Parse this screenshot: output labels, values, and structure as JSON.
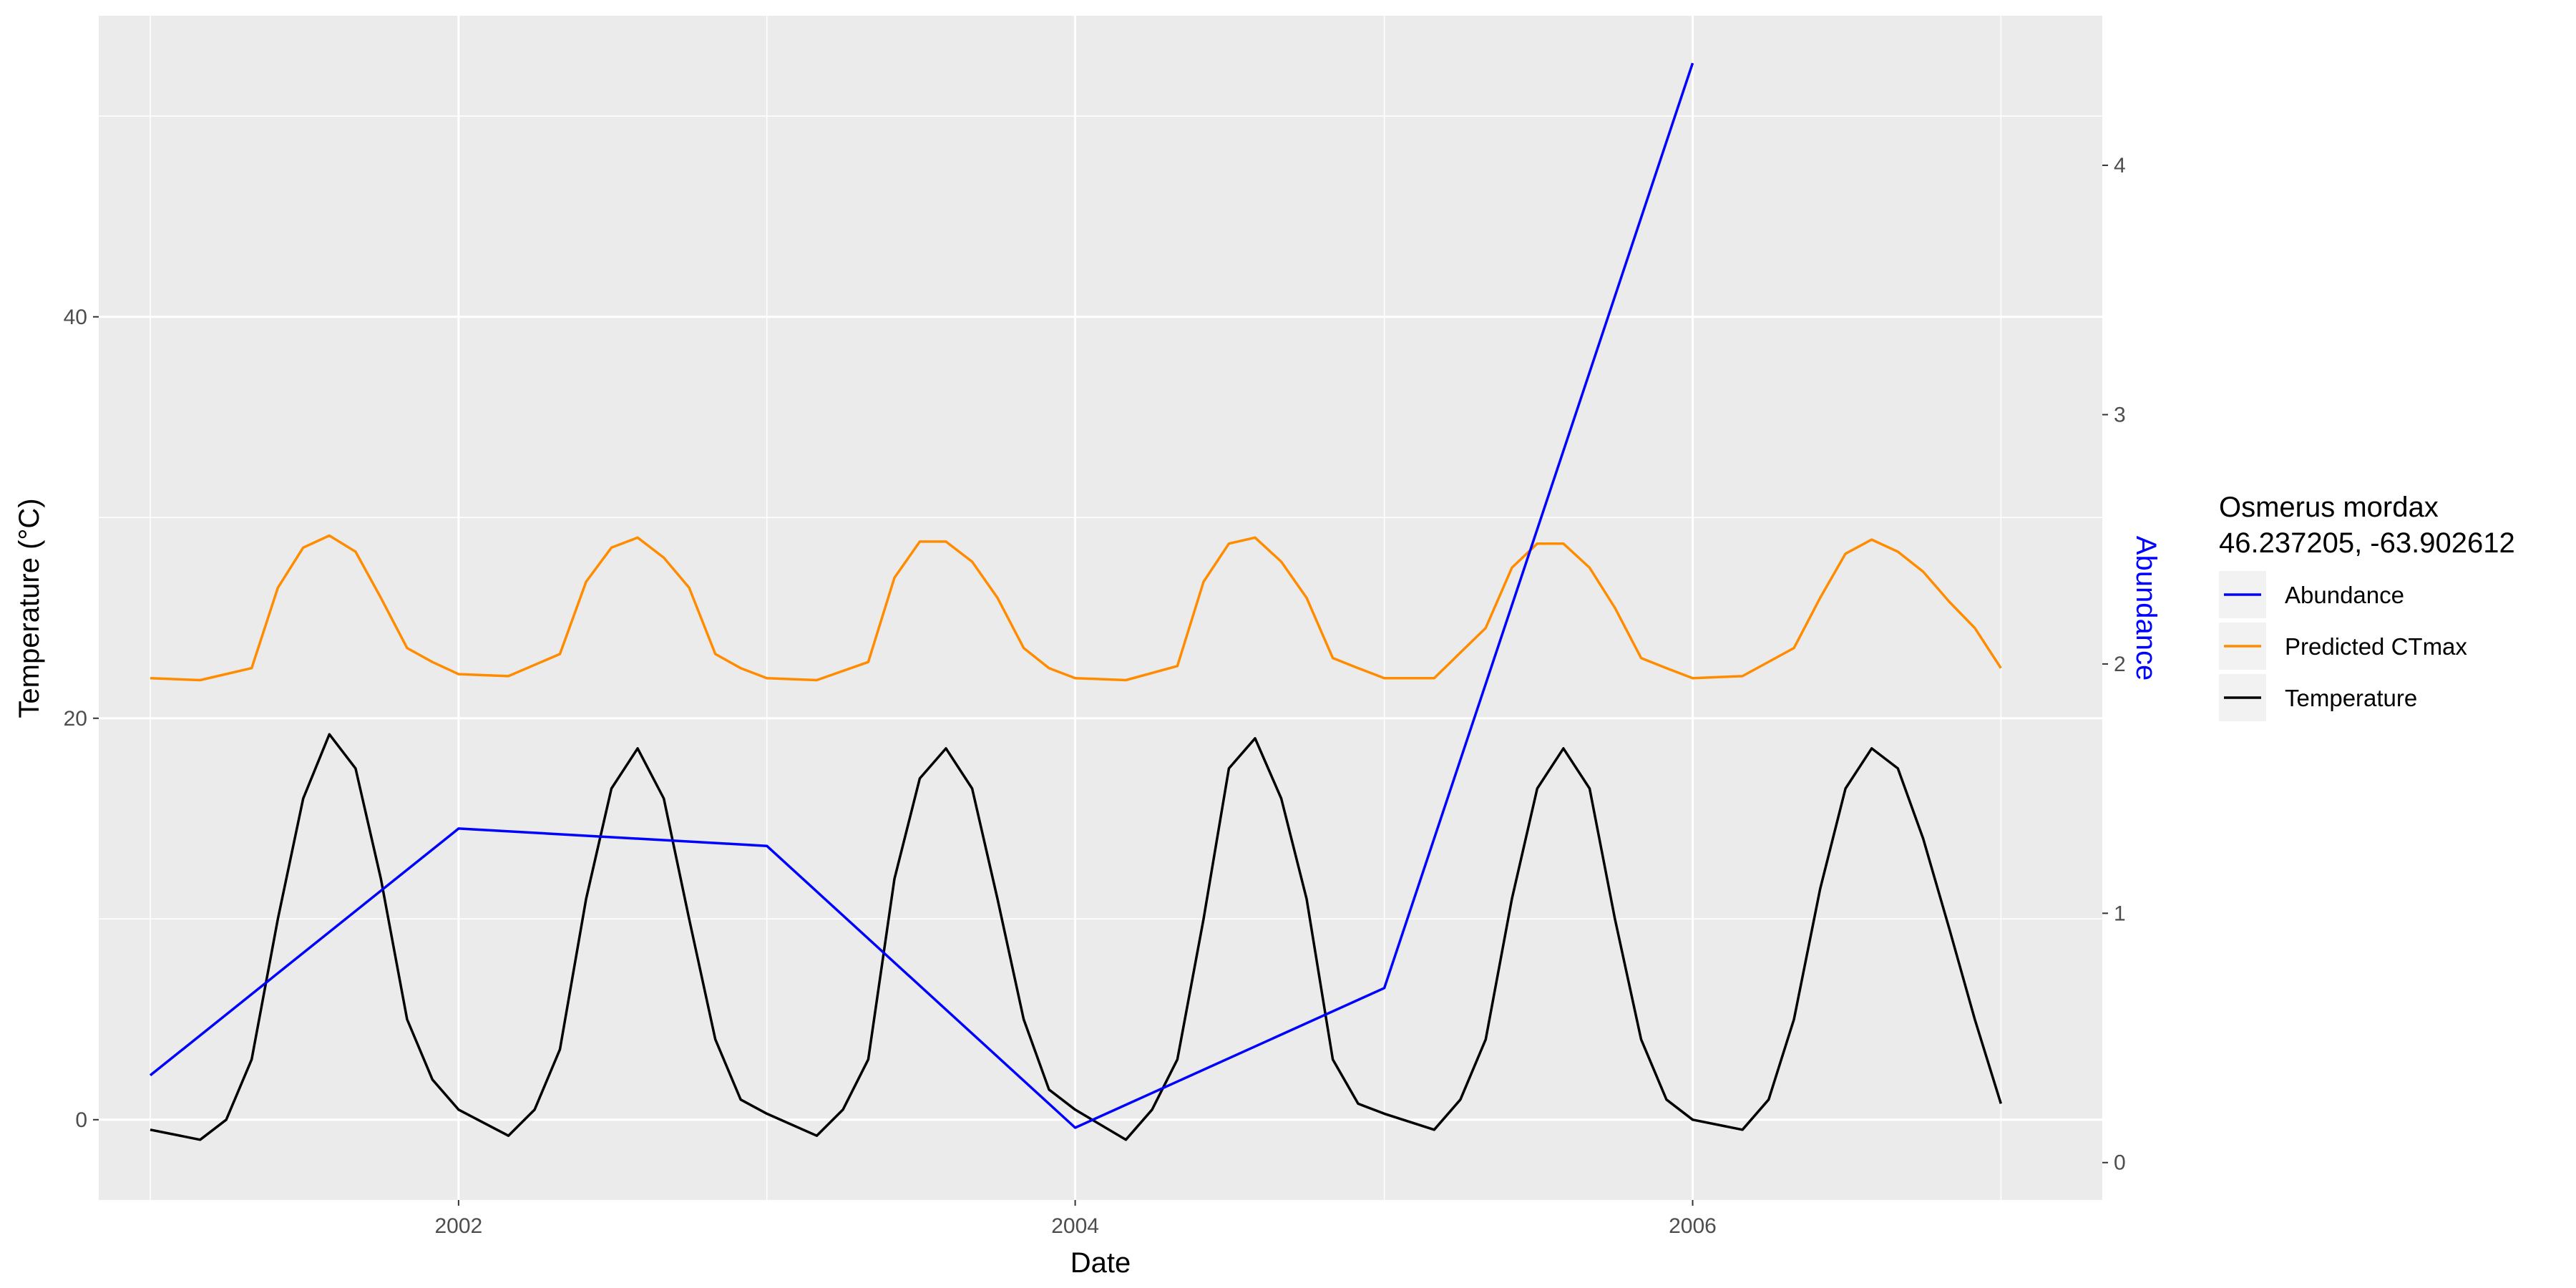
{
  "chart_data": {
    "type": "line",
    "xlabel": "Date",
    "ylabel": "Temperature (°C)",
    "y2label": "Abundance",
    "xlim": [
      "2000-11-01",
      "2007-05-01"
    ],
    "ylim": [
      -4,
      55
    ],
    "y2lim": [
      -0.15,
      4.6
    ],
    "x_ticks": [
      {
        "date": "2002-01-01",
        "label": "2002"
      },
      {
        "date": "2004-01-01",
        "label": "2004"
      },
      {
        "date": "2006-01-01",
        "label": "2006"
      }
    ],
    "y_ticks": [
      0,
      20,
      40
    ],
    "y2_ticks": [
      0,
      1,
      2,
      3,
      4
    ],
    "grid": true,
    "legend": {
      "title_line1": "Osmerus mordax",
      "title_line2": "46.237205, -63.902612",
      "placement": "right",
      "items": [
        {
          "label": "Abundance",
          "color": "#0000ff"
        },
        {
          "label": "Predicted CTmax",
          "color": "#ff8c00"
        },
        {
          "label": "Temperature",
          "color": "#000000"
        }
      ]
    },
    "series": [
      {
        "name": "Abundance",
        "axis": "right",
        "color": "#0000ff",
        "x": [
          "2001-01-01",
          "2002-01-01",
          "2003-01-01",
          "2004-01-01",
          "2005-01-01",
          "2006-01-01"
        ],
        "y": [
          0.35,
          1.34,
          1.27,
          0.14,
          0.7,
          4.41
        ]
      },
      {
        "name": "Predicted CTmax",
        "axis": "left",
        "color": "#ff8c00",
        "x": [
          "2001-01-01",
          "2001-03-01",
          "2001-05-01",
          "2001-06-01",
          "2001-07-01",
          "2001-08-01",
          "2001-09-01",
          "2001-10-01",
          "2001-11-01",
          "2001-12-01",
          "2002-01-01",
          "2002-03-01",
          "2002-05-01",
          "2002-06-01",
          "2002-07-01",
          "2002-08-01",
          "2002-09-01",
          "2002-10-01",
          "2002-11-01",
          "2002-12-01",
          "2003-01-01",
          "2003-03-01",
          "2003-05-01",
          "2003-06-01",
          "2003-07-01",
          "2003-08-01",
          "2003-09-01",
          "2003-10-01",
          "2003-11-01",
          "2003-12-01",
          "2004-01-01",
          "2004-03-01",
          "2004-05-01",
          "2004-06-01",
          "2004-07-01",
          "2004-08-01",
          "2004-09-01",
          "2004-10-01",
          "2004-11-01",
          "2004-12-01",
          "2005-01-01",
          "2005-03-01",
          "2005-05-01",
          "2005-06-01",
          "2005-07-01",
          "2005-08-01",
          "2005-09-01",
          "2005-10-01",
          "2005-11-01",
          "2005-12-01",
          "2006-01-01",
          "2006-03-01",
          "2006-05-01",
          "2006-06-01",
          "2006-07-01",
          "2006-08-01",
          "2006-09-01",
          "2006-10-01",
          "2006-11-01",
          "2006-12-01",
          "2007-01-01"
        ],
        "y": [
          22.0,
          21.9,
          22.5,
          26.5,
          28.5,
          29.1,
          28.3,
          26.0,
          23.5,
          22.8,
          22.2,
          22.1,
          23.2,
          26.8,
          28.5,
          29.0,
          28.0,
          26.5,
          23.2,
          22.5,
          22.0,
          21.9,
          22.8,
          27.0,
          28.8,
          28.8,
          27.8,
          26.0,
          23.5,
          22.5,
          22.0,
          21.9,
          22.6,
          26.8,
          28.7,
          29.0,
          27.8,
          26.0,
          23.0,
          22.5,
          22.0,
          22.0,
          24.5,
          27.5,
          28.7,
          28.7,
          27.5,
          25.5,
          23.0,
          22.5,
          22.0,
          22.1,
          23.5,
          26.0,
          28.2,
          28.9,
          28.3,
          27.3,
          25.8,
          24.5,
          22.5
        ]
      },
      {
        "name": "Temperature",
        "axis": "left",
        "color": "#000000",
        "x": [
          "2001-01-01",
          "2001-03-01",
          "2001-04-01",
          "2001-05-01",
          "2001-06-01",
          "2001-07-01",
          "2001-08-01",
          "2001-09-01",
          "2001-10-01",
          "2001-11-01",
          "2001-12-01",
          "2002-01-01",
          "2002-03-01",
          "2002-04-01",
          "2002-05-01",
          "2002-06-01",
          "2002-07-01",
          "2002-08-01",
          "2002-09-01",
          "2002-10-01",
          "2002-11-01",
          "2002-12-01",
          "2003-01-01",
          "2003-03-01",
          "2003-04-01",
          "2003-05-01",
          "2003-06-01",
          "2003-07-01",
          "2003-08-01",
          "2003-09-01",
          "2003-10-01",
          "2003-11-01",
          "2003-12-01",
          "2004-01-01",
          "2004-03-01",
          "2004-04-01",
          "2004-05-01",
          "2004-06-01",
          "2004-07-01",
          "2004-08-01",
          "2004-09-01",
          "2004-10-01",
          "2004-11-01",
          "2004-12-01",
          "2005-01-01",
          "2005-03-01",
          "2005-04-01",
          "2005-05-01",
          "2005-06-01",
          "2005-07-01",
          "2005-08-01",
          "2005-09-01",
          "2005-10-01",
          "2005-11-01",
          "2005-12-01",
          "2006-01-01",
          "2006-03-01",
          "2006-04-01",
          "2006-05-01",
          "2006-06-01",
          "2006-07-01",
          "2006-08-01",
          "2006-09-01",
          "2006-10-01",
          "2006-11-01",
          "2006-12-01",
          "2007-01-01"
        ],
        "y": [
          -0.5,
          -1.0,
          0.0,
          3.0,
          10.0,
          16.0,
          19.2,
          17.5,
          12.0,
          5.0,
          2.0,
          0.5,
          -0.8,
          0.5,
          3.5,
          11.0,
          16.5,
          18.5,
          16.0,
          10.0,
          4.0,
          1.0,
          0.3,
          -0.8,
          0.5,
          3.0,
          12.0,
          17.0,
          18.5,
          16.5,
          11.0,
          5.0,
          1.5,
          0.5,
          -1.0,
          0.5,
          3.0,
          10.0,
          17.5,
          19.0,
          16.0,
          11.0,
          3.0,
          0.8,
          0.3,
          -0.5,
          1.0,
          4.0,
          11.0,
          16.5,
          18.5,
          16.5,
          10.0,
          4.0,
          1.0,
          0.0,
          -0.5,
          1.0,
          5.0,
          11.5,
          16.5,
          18.5,
          17.5,
          14.0,
          9.5,
          5.0,
          0.8
        ]
      }
    ]
  }
}
